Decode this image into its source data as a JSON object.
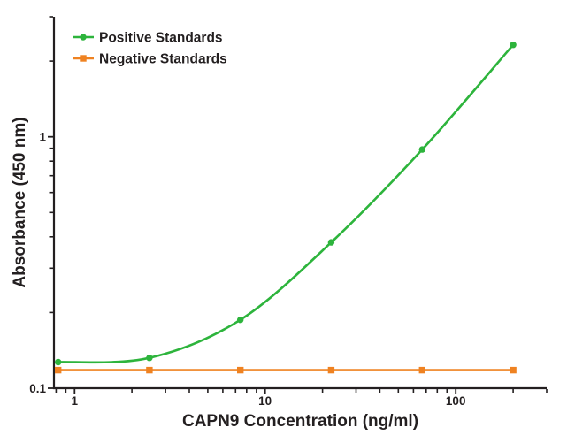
{
  "figure": {
    "description": "ELISA standard curve plot",
    "background_color": "#ffffff"
  },
  "chart_data": {
    "type": "line",
    "title": "",
    "xlabel": "CAPN9 Concentration (ng/ml)",
    "ylabel": "Absorbance (450 nm)",
    "x_scale": "log",
    "y_scale": "log",
    "xlim": [
      0.78,
      300
    ],
    "ylim": [
      0.1,
      3
    ],
    "grid": false,
    "legend_position": "top-left",
    "axis_color": "#231f20",
    "text_color": "#231f20",
    "x_ticks": {
      "major": [
        1,
        10,
        100
      ],
      "major_labels": [
        "1",
        "10",
        "100"
      ],
      "minor": [
        0.8,
        0.9,
        2,
        3,
        4,
        5,
        6,
        7,
        8,
        9,
        20,
        30,
        40,
        50,
        60,
        70,
        80,
        90,
        200,
        300
      ]
    },
    "y_ticks": {
      "major": [
        0.1,
        1
      ],
      "major_labels": [
        "0.1",
        "1"
      ],
      "minor": [
        0.2,
        0.3,
        0.4,
        0.5,
        0.6,
        0.7,
        0.8,
        0.9,
        2,
        3
      ]
    },
    "series": [
      {
        "name": "Positive Standards",
        "color": "#2db43c",
        "marker": "circle",
        "line": "smooth",
        "x": [
          0.82,
          2.47,
          7.41,
          22.2,
          66.7,
          200
        ],
        "y": [
          0.127,
          0.132,
          0.187,
          0.38,
          0.89,
          2.32
        ]
      },
      {
        "name": "Negative Standards",
        "color": "#ef8221",
        "marker": "square",
        "line": "straight",
        "x": [
          0.82,
          2.47,
          7.41,
          22.2,
          66.7,
          200
        ],
        "y": [
          0.118,
          0.118,
          0.118,
          0.118,
          0.118,
          0.118
        ]
      }
    ]
  }
}
